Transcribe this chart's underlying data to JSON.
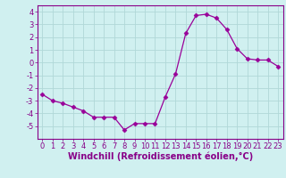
{
  "x": [
    0,
    1,
    2,
    3,
    4,
    5,
    6,
    7,
    8,
    9,
    10,
    11,
    12,
    13,
    14,
    15,
    16,
    17,
    18,
    19,
    20,
    21,
    22,
    23
  ],
  "y": [
    -2.5,
    -3.0,
    -3.2,
    -3.5,
    -3.8,
    -4.3,
    -4.3,
    -4.3,
    -5.3,
    -4.8,
    -4.8,
    -4.8,
    -2.7,
    -0.9,
    2.3,
    3.7,
    3.8,
    3.5,
    2.6,
    1.1,
    0.3,
    0.2,
    0.2,
    -0.3
  ],
  "line_color": "#990099",
  "marker": "D",
  "marker_size": 2.5,
  "bg_color": "#d0f0f0",
  "grid_color": "#b0d8d8",
  "xlabel": "Windchill (Refroidissement éolien,°C)",
  "xlabel_fontsize": 7.0,
  "ylim": [
    -6,
    4.5
  ],
  "xlim": [
    -0.5,
    23.5
  ],
  "yticks": [
    -5,
    -4,
    -3,
    -2,
    -1,
    0,
    1,
    2,
    3,
    4
  ],
  "xticks": [
    0,
    1,
    2,
    3,
    4,
    5,
    6,
    7,
    8,
    9,
    10,
    11,
    12,
    13,
    14,
    15,
    16,
    17,
    18,
    19,
    20,
    21,
    22,
    23
  ],
  "tick_fontsize": 6.0,
  "tick_color": "#880088",
  "spine_color": "#880088",
  "axis_bg": "#d0f0f0"
}
